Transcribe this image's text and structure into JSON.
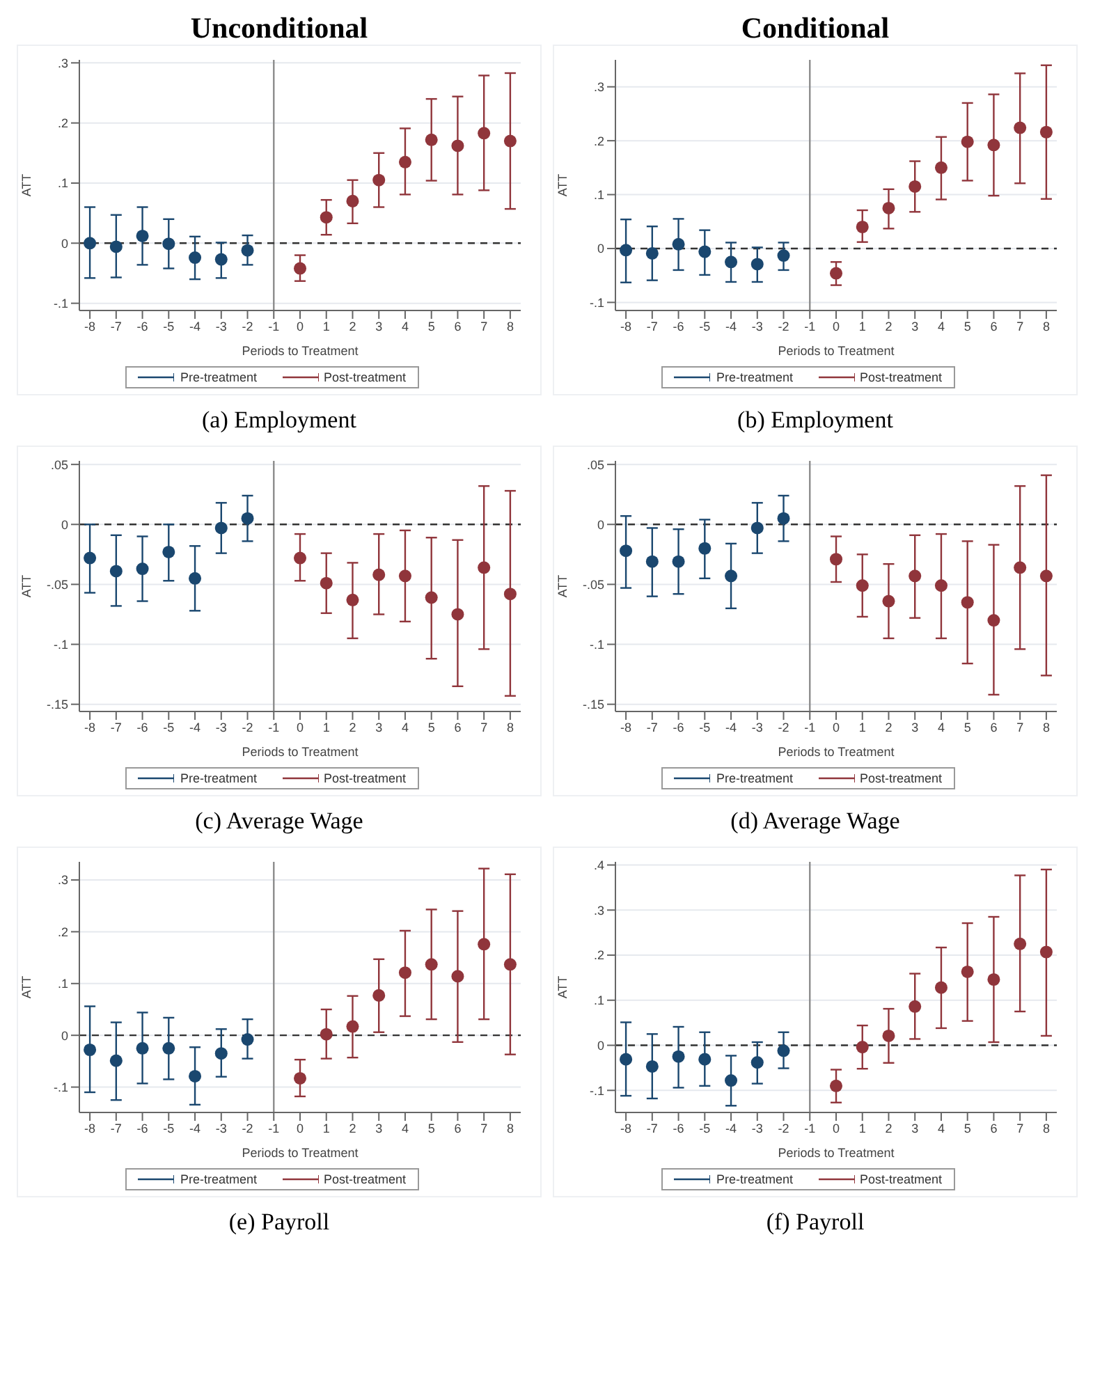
{
  "chart_data": [
    {
      "type": "scatter",
      "title": "Unconditional",
      "xlabel": "Periods to Treatment",
      "ylabel": "ATT",
      "annotations": [
        "(a) Employment"
      ],
      "xlim": [
        -8.4,
        8.4
      ],
      "xticks": [
        -8,
        -7,
        -6,
        -5,
        -4,
        -3,
        -2,
        -1,
        0,
        1,
        2,
        3,
        4,
        5,
        6,
        7,
        8
      ],
      "ylim": [
        -0.112,
        0.305
      ],
      "yticks": [
        {
          "value": -0.1,
          "label": "-.1"
        },
        {
          "value": 0,
          "label": "0"
        },
        {
          "value": 0.1,
          "label": ".1"
        },
        {
          "value": 0.2,
          "label": ".2"
        },
        {
          "value": 0.3,
          "label": ".3"
        }
      ],
      "grid": "y",
      "legend": "bottom",
      "marker": "circle",
      "ref_lines": [
        {
          "axis": "x",
          "value": -1,
          "color": "#8c8c8c"
        },
        {
          "axis": "y",
          "value": 0,
          "color": "#333333",
          "line_style": "dashed"
        }
      ],
      "series": [
        {
          "name": "Pre-treatment",
          "color": "#1a476f",
          "x": [
            -8,
            -7,
            -6,
            -5,
            -4,
            -3,
            -2
          ],
          "values": [
            0.0,
            -0.006,
            0.012,
            -0.001,
            -0.024,
            -0.027,
            -0.012
          ],
          "errors": [
            [
              -0.058,
              0.06
            ],
            [
              -0.057,
              0.047
            ],
            [
              -0.036,
              0.06
            ],
            [
              -0.042,
              0.04
            ],
            [
              -0.06,
              0.011
            ],
            [
              -0.058,
              0.001
            ],
            [
              -0.036,
              0.013
            ]
          ]
        },
        {
          "name": "Post-treatment",
          "color": "#90353b",
          "x": [
            0,
            1,
            2,
            3,
            4,
            5,
            6,
            7,
            8
          ],
          "values": [
            -0.042,
            0.043,
            0.07,
            0.105,
            0.135,
            0.172,
            0.162,
            0.183,
            0.17
          ],
          "errors": [
            [
              -0.063,
              -0.02
            ],
            [
              0.014,
              0.072
            ],
            [
              0.033,
              0.105
            ],
            [
              0.06,
              0.15
            ],
            [
              0.081,
              0.191
            ],
            [
              0.104,
              0.24
            ],
            [
              0.081,
              0.244
            ],
            [
              0.088,
              0.279
            ],
            [
              0.057,
              0.283
            ]
          ]
        }
      ]
    },
    {
      "type": "scatter",
      "title": "Conditional",
      "xlabel": "Periods to Treatment",
      "ylabel": "ATT",
      "annotations": [
        "(b) Employment"
      ],
      "xlim": [
        -8.4,
        8.4
      ],
      "xticks": [
        -8,
        -7,
        -6,
        -5,
        -4,
        -3,
        -2,
        -1,
        0,
        1,
        2,
        3,
        4,
        5,
        6,
        7,
        8
      ],
      "ylim": [
        -0.115,
        0.35
      ],
      "yticks": [
        {
          "value": -0.1,
          "label": "-.1"
        },
        {
          "value": 0,
          "label": "0"
        },
        {
          "value": 0.1,
          "label": ".1"
        },
        {
          "value": 0.2,
          "label": ".2"
        },
        {
          "value": 0.3,
          "label": ".3"
        }
      ],
      "grid": "y",
      "legend": "bottom",
      "marker": "circle",
      "ref_lines": [
        {
          "axis": "x",
          "value": -1,
          "color": "#8c8c8c"
        },
        {
          "axis": "y",
          "value": 0,
          "color": "#333333",
          "line_style": "dashed"
        }
      ],
      "series": [
        {
          "name": "Pre-treatment",
          "color": "#1a476f",
          "x": [
            -8,
            -7,
            -6,
            -5,
            -4,
            -3,
            -2
          ],
          "values": [
            -0.003,
            -0.009,
            0.008,
            -0.006,
            -0.025,
            -0.029,
            -0.013
          ],
          "errors": [
            [
              -0.063,
              0.054
            ],
            [
              -0.059,
              0.041
            ],
            [
              -0.04,
              0.055
            ],
            [
              -0.049,
              0.034
            ],
            [
              -0.062,
              0.011
            ],
            [
              -0.062,
              0.002
            ],
            [
              -0.04,
              0.011
            ]
          ]
        },
        {
          "name": "Post-treatment",
          "color": "#90353b",
          "x": [
            0,
            1,
            2,
            3,
            4,
            5,
            6,
            7,
            8
          ],
          "values": [
            -0.046,
            0.04,
            0.075,
            0.115,
            0.15,
            0.198,
            0.192,
            0.224,
            0.216
          ],
          "errors": [
            [
              -0.068,
              -0.025
            ],
            [
              0.012,
              0.071
            ],
            [
              0.037,
              0.11
            ],
            [
              0.068,
              0.162
            ],
            [
              0.091,
              0.207
            ],
            [
              0.126,
              0.27
            ],
            [
              0.098,
              0.286
            ],
            [
              0.121,
              0.325
            ],
            [
              0.092,
              0.34
            ]
          ]
        }
      ]
    },
    {
      "type": "scatter",
      "xlabel": "Periods to Treatment",
      "ylabel": "ATT",
      "annotations": [
        "(c) Average Wage"
      ],
      "xlim": [
        -8.4,
        8.4
      ],
      "xticks": [
        -8,
        -7,
        -6,
        -5,
        -4,
        -3,
        -2,
        -1,
        0,
        1,
        2,
        3,
        4,
        5,
        6,
        7,
        8
      ],
      "ylim": [
        -0.156,
        0.053
      ],
      "yticks": [
        {
          "value": -0.15,
          "label": "-.15"
        },
        {
          "value": -0.1,
          "label": "-.1"
        },
        {
          "value": -0.05,
          "label": "-.05"
        },
        {
          "value": 0,
          "label": "0"
        },
        {
          "value": 0.05,
          "label": ".05"
        }
      ],
      "grid": "y",
      "legend": "bottom",
      "marker": "circle",
      "ref_lines": [
        {
          "axis": "x",
          "value": -1,
          "color": "#8c8c8c"
        },
        {
          "axis": "y",
          "value": 0,
          "color": "#333333",
          "line_style": "dashed"
        }
      ],
      "series": [
        {
          "name": "Pre-treatment",
          "color": "#1a476f",
          "x": [
            -8,
            -7,
            -6,
            -5,
            -4,
            -3,
            -2
          ],
          "values": [
            -0.028,
            -0.039,
            -0.037,
            -0.023,
            -0.045,
            -0.003,
            0.005
          ],
          "errors": [
            [
              -0.057,
              0.0
            ],
            [
              -0.068,
              -0.009
            ],
            [
              -0.064,
              -0.01
            ],
            [
              -0.047,
              0.0
            ],
            [
              -0.072,
              -0.018
            ],
            [
              -0.024,
              0.018
            ],
            [
              -0.014,
              0.024
            ]
          ]
        },
        {
          "name": "Post-treatment",
          "color": "#90353b",
          "x": [
            0,
            1,
            2,
            3,
            4,
            5,
            6,
            7,
            8
          ],
          "values": [
            -0.028,
            -0.049,
            -0.063,
            -0.042,
            -0.043,
            -0.061,
            -0.075,
            -0.036,
            -0.058
          ],
          "errors": [
            [
              -0.047,
              -0.008
            ],
            [
              -0.074,
              -0.024
            ],
            [
              -0.095,
              -0.032
            ],
            [
              -0.075,
              -0.008
            ],
            [
              -0.081,
              -0.005
            ],
            [
              -0.112,
              -0.011
            ],
            [
              -0.135,
              -0.013
            ],
            [
              -0.104,
              0.032
            ],
            [
              -0.143,
              0.028
            ]
          ]
        }
      ]
    },
    {
      "type": "scatter",
      "xlabel": "Periods to Treatment",
      "ylabel": "ATT",
      "annotations": [
        "(d) Average Wage"
      ],
      "xlim": [
        -8.4,
        8.4
      ],
      "xticks": [
        -8,
        -7,
        -6,
        -5,
        -4,
        -3,
        -2,
        -1,
        0,
        1,
        2,
        3,
        4,
        5,
        6,
        7,
        8
      ],
      "ylim": [
        -0.156,
        0.053
      ],
      "yticks": [
        {
          "value": -0.15,
          "label": "-.15"
        },
        {
          "value": -0.1,
          "label": "-.1"
        },
        {
          "value": -0.05,
          "label": "-.05"
        },
        {
          "value": 0,
          "label": "0"
        },
        {
          "value": 0.05,
          "label": ".05"
        }
      ],
      "grid": "y",
      "legend": "bottom",
      "marker": "circle",
      "ref_lines": [
        {
          "axis": "x",
          "value": -1,
          "color": "#8c8c8c"
        },
        {
          "axis": "y",
          "value": 0,
          "color": "#333333",
          "line_style": "dashed"
        }
      ],
      "series": [
        {
          "name": "Pre-treatment",
          "color": "#1a476f",
          "x": [
            -8,
            -7,
            -6,
            -5,
            -4,
            -3,
            -2
          ],
          "values": [
            -0.022,
            -0.031,
            -0.031,
            -0.02,
            -0.043,
            -0.003,
            0.005
          ],
          "errors": [
            [
              -0.053,
              0.007
            ],
            [
              -0.06,
              -0.003
            ],
            [
              -0.058,
              -0.004
            ],
            [
              -0.045,
              0.004
            ],
            [
              -0.07,
              -0.016
            ],
            [
              -0.024,
              0.018
            ],
            [
              -0.014,
              0.024
            ]
          ]
        },
        {
          "name": "Post-treatment",
          "color": "#90353b",
          "x": [
            0,
            1,
            2,
            3,
            4,
            5,
            6,
            7,
            8
          ],
          "values": [
            -0.029,
            -0.051,
            -0.064,
            -0.043,
            -0.051,
            -0.065,
            -0.08,
            -0.036,
            -0.043
          ],
          "errors": [
            [
              -0.048,
              -0.01
            ],
            [
              -0.077,
              -0.025
            ],
            [
              -0.095,
              -0.033
            ],
            [
              -0.078,
              -0.009
            ],
            [
              -0.095,
              -0.008
            ],
            [
              -0.116,
              -0.014
            ],
            [
              -0.142,
              -0.017
            ],
            [
              -0.104,
              0.032
            ],
            [
              -0.126,
              0.041
            ]
          ]
        }
      ]
    },
    {
      "type": "scatter",
      "xlabel": "Periods to Treatment",
      "ylabel": "ATT",
      "annotations": [
        "(e) Payroll"
      ],
      "xlim": [
        -8.4,
        8.4
      ],
      "xticks": [
        -8,
        -7,
        -6,
        -5,
        -4,
        -3,
        -2,
        -1,
        0,
        1,
        2,
        3,
        4,
        5,
        6,
        7,
        8
      ],
      "ylim": [
        -0.149,
        0.335
      ],
      "yticks": [
        {
          "value": -0.1,
          "label": "-.1"
        },
        {
          "value": 0,
          "label": "0"
        },
        {
          "value": 0.1,
          "label": ".1"
        },
        {
          "value": 0.2,
          "label": ".2"
        },
        {
          "value": 0.3,
          "label": ".3"
        }
      ],
      "grid": "y",
      "legend": "bottom",
      "marker": "circle",
      "ref_lines": [
        {
          "axis": "x",
          "value": -1,
          "color": "#8c8c8c"
        },
        {
          "axis": "y",
          "value": 0,
          "color": "#333333",
          "line_style": "dashed"
        }
      ],
      "series": [
        {
          "name": "Pre-treatment",
          "color": "#1a476f",
          "x": [
            -8,
            -7,
            -6,
            -5,
            -4,
            -3,
            -2
          ],
          "values": [
            -0.028,
            -0.049,
            -0.025,
            -0.025,
            -0.079,
            -0.035,
            -0.008
          ],
          "errors": [
            [
              -0.11,
              0.056
            ],
            [
              -0.125,
              0.025
            ],
            [
              -0.093,
              0.044
            ],
            [
              -0.085,
              0.034
            ],
            [
              -0.134,
              -0.023
            ],
            [
              -0.08,
              0.012
            ],
            [
              -0.045,
              0.031
            ]
          ]
        },
        {
          "name": "Post-treatment",
          "color": "#90353b",
          "x": [
            0,
            1,
            2,
            3,
            4,
            5,
            6,
            7,
            8
          ],
          "values": [
            -0.083,
            0.002,
            0.017,
            0.077,
            0.121,
            0.137,
            0.114,
            0.176,
            0.137
          ],
          "errors": [
            [
              -0.118,
              -0.047
            ],
            [
              -0.045,
              0.05
            ],
            [
              -0.043,
              0.076
            ],
            [
              0.006,
              0.147
            ],
            [
              0.037,
              0.202
            ],
            [
              0.031,
              0.243
            ],
            [
              -0.013,
              0.24
            ],
            [
              0.031,
              0.322
            ],
            [
              -0.037,
              0.311
            ]
          ]
        }
      ]
    },
    {
      "type": "scatter",
      "xlabel": "Periods to Treatment",
      "ylabel": "ATT",
      "annotations": [
        "(f) Payroll"
      ],
      "xlim": [
        -8.4,
        8.4
      ],
      "xticks": [
        -8,
        -7,
        -6,
        -5,
        -4,
        -3,
        -2,
        -1,
        0,
        1,
        2,
        3,
        4,
        5,
        6,
        7,
        8
      ],
      "ylim": [
        -0.149,
        0.407
      ],
      "yticks": [
        {
          "value": -0.1,
          "label": "-.1"
        },
        {
          "value": 0,
          "label": "0"
        },
        {
          "value": 0.1,
          "label": ".1"
        },
        {
          "value": 0.2,
          "label": ".2"
        },
        {
          "value": 0.3,
          "label": ".3"
        },
        {
          "value": 0.4,
          "label": ".4"
        }
      ],
      "grid": "y",
      "legend": "bottom",
      "marker": "circle",
      "ref_lines": [
        {
          "axis": "x",
          "value": -1,
          "color": "#8c8c8c"
        },
        {
          "axis": "y",
          "value": 0,
          "color": "#333333",
          "line_style": "dashed"
        }
      ],
      "series": [
        {
          "name": "Pre-treatment",
          "color": "#1a476f",
          "x": [
            -8,
            -7,
            -6,
            -5,
            -4,
            -3,
            -2
          ],
          "values": [
            -0.031,
            -0.047,
            -0.025,
            -0.031,
            -0.078,
            -0.038,
            -0.012
          ],
          "errors": [
            [
              -0.112,
              0.051
            ],
            [
              -0.118,
              0.025
            ],
            [
              -0.094,
              0.041
            ],
            [
              -0.09,
              0.029
            ],
            [
              -0.134,
              -0.023
            ],
            [
              -0.085,
              0.007
            ],
            [
              -0.051,
              0.029
            ]
          ]
        },
        {
          "name": "Post-treatment",
          "color": "#90353b",
          "x": [
            0,
            1,
            2,
            3,
            4,
            5,
            6,
            7,
            8
          ],
          "values": [
            -0.09,
            -0.004,
            0.021,
            0.086,
            0.128,
            0.163,
            0.146,
            0.225,
            0.207
          ],
          "errors": [
            [
              -0.127,
              -0.054
            ],
            [
              -0.052,
              0.044
            ],
            [
              -0.039,
              0.081
            ],
            [
              0.014,
              0.159
            ],
            [
              0.038,
              0.217
            ],
            [
              0.054,
              0.271
            ],
            [
              0.007,
              0.285
            ],
            [
              0.075,
              0.377
            ],
            [
              0.021,
              0.39
            ]
          ]
        }
      ]
    }
  ]
}
